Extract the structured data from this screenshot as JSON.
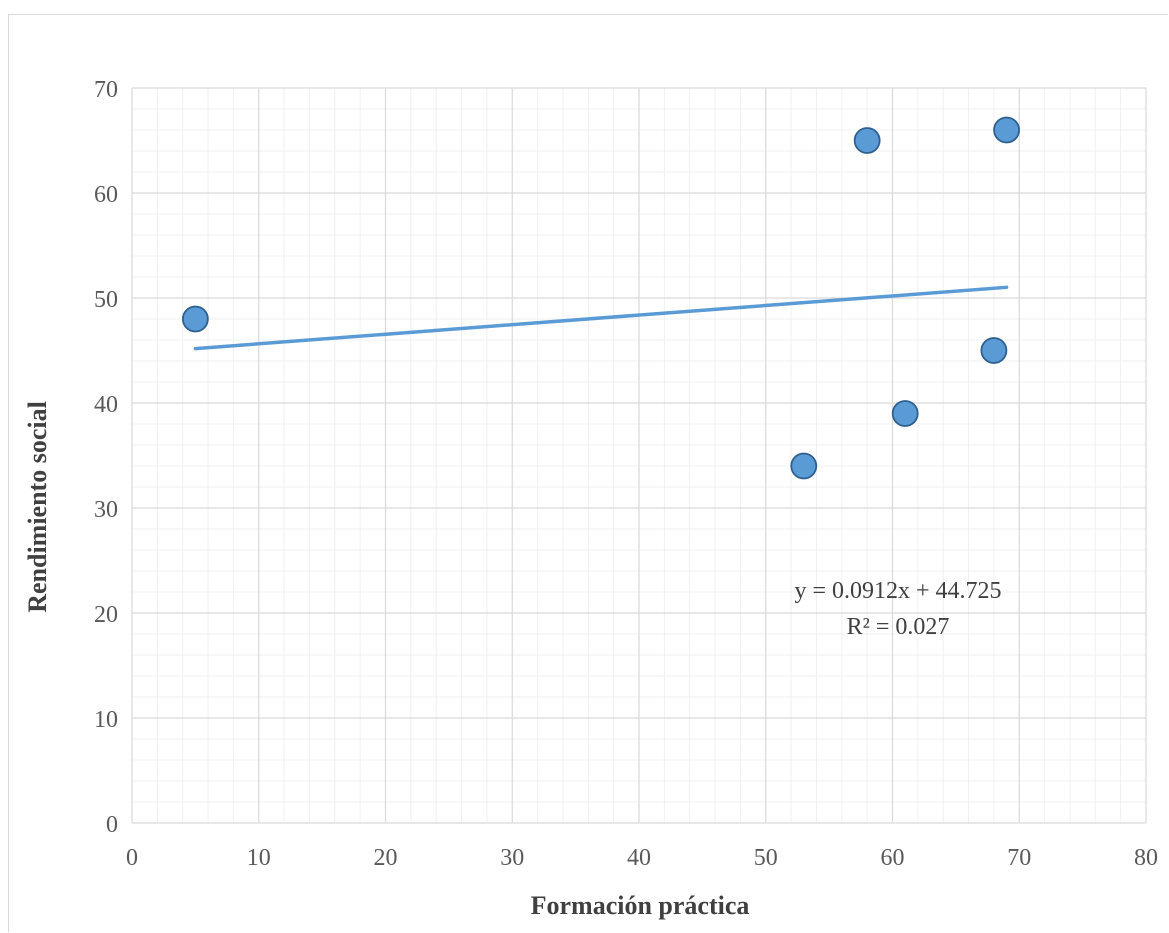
{
  "chart_data": {
    "type": "scatter",
    "title": "",
    "xlabel": "Formación práctica",
    "ylabel": "Rendimiento social",
    "xlim": [
      0,
      80
    ],
    "ylim": [
      0,
      70
    ],
    "x_ticks": [
      0,
      10,
      20,
      30,
      40,
      50,
      60,
      70,
      80
    ],
    "y_ticks": [
      0,
      10,
      20,
      30,
      40,
      50,
      60,
      70
    ],
    "major_grid": true,
    "minor_grid": true,
    "points": [
      {
        "x": 5,
        "y": 48
      },
      {
        "x": 53,
        "y": 34
      },
      {
        "x": 58,
        "y": 65
      },
      {
        "x": 61,
        "y": 39
      },
      {
        "x": 68,
        "y": 45
      },
      {
        "x": 69,
        "y": 66
      }
    ],
    "trendline": {
      "type": "linear",
      "slope": 0.0912,
      "intercept": 44.725,
      "x_range": [
        5,
        69
      ],
      "equation_text": "y = 0.0912x + 44.725",
      "r2_text": "R² = 0.027"
    },
    "colors": {
      "marker_fill": "#5b9bd5",
      "marker_stroke": "#2e5f8f",
      "trendline": "#5b9bd5",
      "major_grid": "#d9d9d9",
      "minor_grid": "#f0f0f0"
    }
  }
}
